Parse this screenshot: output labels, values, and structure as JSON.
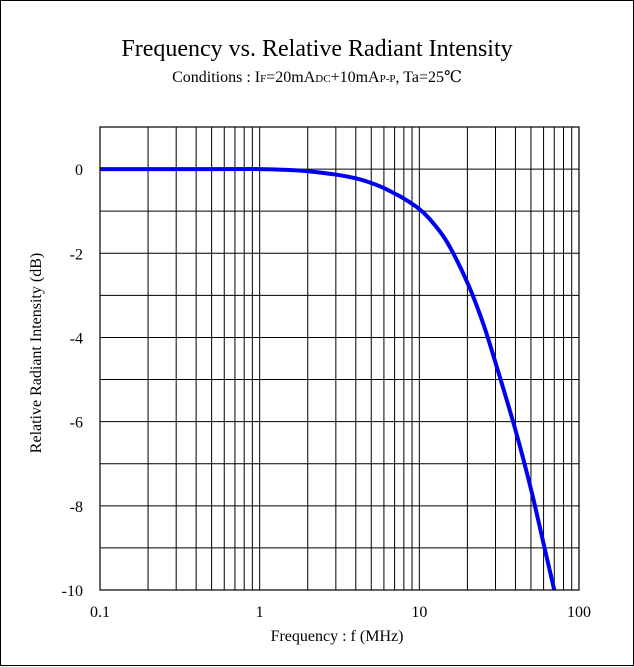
{
  "chart_data": {
    "type": "line",
    "title": "Frequency vs. Relative Radiant Intensity",
    "subtitle": {
      "prefix": "Conditions : I",
      "if_sub": "F",
      "mid1": "=20mA",
      "dc_sub": "DC",
      "mid2": "+10mA",
      "pp_sub": "P-P",
      "suffix": ", Ta=25℃"
    },
    "xlabel": "Frequency : f (MHz)",
    "ylabel": "Relative Radiant Intensity  (dB)",
    "x_scale": "log",
    "xlim": [
      0.1,
      100
    ],
    "ylim": [
      -10,
      1
    ],
    "x_ticks": [
      {
        "value": 0.1,
        "label": "0.1"
      },
      {
        "value": 1,
        "label": "1"
      },
      {
        "value": 10,
        "label": "10"
      },
      {
        "value": 100,
        "label": "100"
      }
    ],
    "y_ticks": [
      {
        "value": 0,
        "label": "0"
      },
      {
        "value": -2,
        "label": "-2"
      },
      {
        "value": -4,
        "label": "-4"
      },
      {
        "value": -6,
        "label": "-6"
      },
      {
        "value": -8,
        "label": "-8"
      },
      {
        "value": -10,
        "label": "-10"
      }
    ],
    "grid": true,
    "series": [
      {
        "color": "#0000ee",
        "x": [
          0.1,
          0.5,
          1,
          1.5,
          2,
          3,
          4,
          5,
          6,
          7,
          8,
          10,
          12,
          15,
          20,
          25,
          30,
          40,
          50,
          60,
          70
        ],
        "y": [
          0,
          0,
          0,
          -0.02,
          -0.05,
          -0.13,
          -0.22,
          -0.33,
          -0.45,
          -0.58,
          -0.7,
          -0.95,
          -1.25,
          -1.75,
          -2.7,
          -3.65,
          -4.6,
          -6.2,
          -7.6,
          -8.9,
          -10
        ]
      }
    ]
  }
}
